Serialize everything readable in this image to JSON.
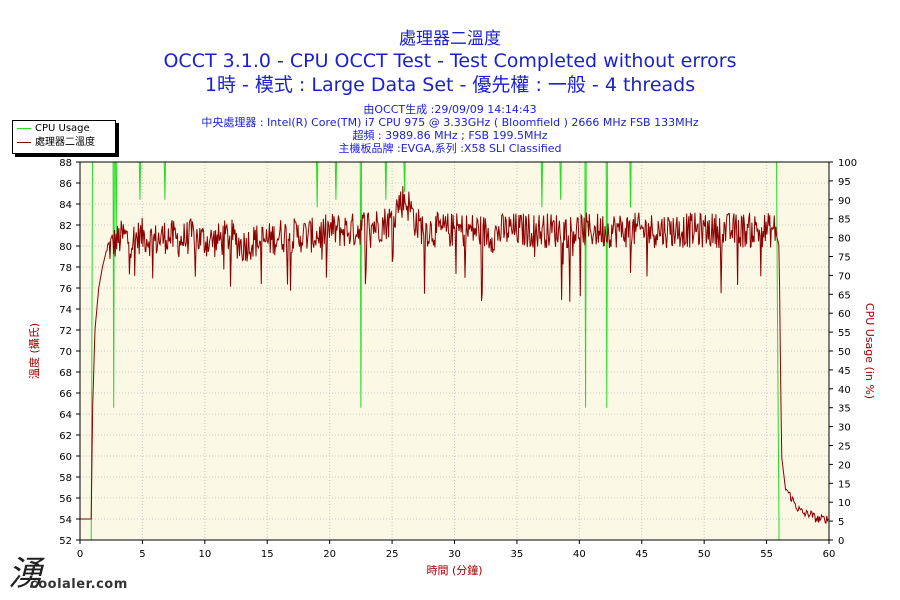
{
  "header": {
    "title1": "處理器二溫度",
    "title2": "OCCT 3.1.0 - CPU OCCT Test - Test Completed without errors",
    "title3": "1時 - 模式 : Large Data Set - 優先權 : 一般 - 4 threads",
    "info_generated": "由OCCT生成 :29/09/09 14:14:43",
    "info_cpu": "中央處理器 : Intel(R) Core(TM) i7 CPU 975 @ 3.33GHz ( Bloomfield ) 2666 MHz FSB 133MHz",
    "info_freq": "超頻 : 3989.86 MHz ; FSB 199.5MHz",
    "info_board": "主機板品牌 :EVGA,系列 :X58 SLI Classified"
  },
  "legend": {
    "cpu_usage": "CPU Usage",
    "temp": "處理器二溫度"
  },
  "watermark": {
    "text": "coolaler.com"
  },
  "colors": {
    "temp_line": "#8b0000",
    "usage_line": "#22dd22",
    "plot_bg": "#fbf8e6",
    "grid": "#c8c8c8",
    "title": "#1a1fd0",
    "axis_label": "#a00000"
  },
  "chart_data": {
    "type": "line",
    "xlabel": "時間 (分鐘)",
    "ylabel_left": "溫度 (攝氏)",
    "ylabel_right": "CPU Usage (in %)",
    "xlim": [
      0,
      60
    ],
    "ylim_left": [
      52,
      88
    ],
    "ylim_right": [
      0,
      100
    ],
    "x_ticks": [
      0,
      5,
      10,
      15,
      20,
      25,
      30,
      35,
      40,
      45,
      50,
      55,
      60
    ],
    "y_ticks_left": [
      52,
      54,
      56,
      58,
      60,
      62,
      64,
      66,
      68,
      70,
      72,
      74,
      76,
      78,
      80,
      82,
      84,
      86,
      88
    ],
    "y_ticks_right": [
      0,
      5,
      10,
      15,
      20,
      25,
      30,
      35,
      40,
      45,
      50,
      55,
      60,
      65,
      70,
      75,
      80,
      85,
      90,
      95,
      100
    ],
    "grid": true,
    "legend_position": "top-left",
    "series": [
      {
        "name": "處理器二溫度",
        "axis": "left",
        "x": [
          0,
          0.9,
          1.0,
          1.2,
          1.5,
          1.8,
          2.1,
          2.5,
          3.0,
          3.5,
          4.0,
          5,
          6,
          7,
          8,
          9,
          10,
          11,
          12,
          13,
          14,
          15,
          16,
          17,
          18,
          19,
          20,
          21,
          22,
          23,
          24,
          25,
          25.5,
          26,
          26.5,
          27,
          28,
          29,
          30,
          31,
          32,
          33,
          34,
          35,
          36,
          37,
          38,
          39,
          40,
          41,
          42,
          43,
          44,
          45,
          46,
          47,
          48,
          49,
          50,
          51,
          52,
          53,
          54,
          55,
          55.7,
          56.0,
          56.2,
          56.5,
          57,
          57.5,
          58,
          58.5,
          59,
          59.5,
          60
        ],
        "y": [
          54,
          54,
          64,
          72,
          76,
          78,
          79.5,
          80,
          80.5,
          81,
          80.5,
          81,
          80.5,
          81,
          80.5,
          81,
          80.5,
          80.5,
          81,
          80,
          80.5,
          80.5,
          81,
          81,
          81,
          81,
          81.5,
          81.5,
          81.5,
          82,
          82,
          82.5,
          84,
          84.5,
          83.5,
          82,
          81.5,
          81.5,
          81.5,
          81.5,
          81.5,
          81,
          81.5,
          81.5,
          81.5,
          81.5,
          81.5,
          81.5,
          81.5,
          81.5,
          81.5,
          81.5,
          81.5,
          81.5,
          81.5,
          81.5,
          81.5,
          81.5,
          81.5,
          81.5,
          81.5,
          81.5,
          81.5,
          81.5,
          81.5,
          80,
          60,
          57,
          56,
          55,
          54.5,
          54.5,
          54,
          54,
          54
        ]
      },
      {
        "name": "CPU Usage",
        "axis": "right",
        "x": [
          0,
          0.9,
          1.0,
          3,
          5,
          10,
          15,
          20,
          25,
          30,
          35,
          40,
          45,
          50,
          55,
          55.8,
          56.0,
          56.2,
          60
        ],
        "y": [
          0,
          0,
          100,
          100,
          100,
          100,
          100,
          100,
          100,
          100,
          100,
          100,
          100,
          100,
          100,
          100,
          0,
          0,
          0
        ],
        "dips": [
          {
            "x": 2.7,
            "y": 35
          },
          {
            "x": 2.9,
            "y": 80
          },
          {
            "x": 4.8,
            "y": 90
          },
          {
            "x": 6.8,
            "y": 90
          },
          {
            "x": 19.0,
            "y": 88
          },
          {
            "x": 20.5,
            "y": 90
          },
          {
            "x": 22.5,
            "y": 35
          },
          {
            "x": 24.5,
            "y": 90
          },
          {
            "x": 26.0,
            "y": 92
          },
          {
            "x": 37.0,
            "y": 88
          },
          {
            "x": 38.5,
            "y": 90
          },
          {
            "x": 40.5,
            "y": 35
          },
          {
            "x": 42.2,
            "y": 35
          },
          {
            "x": 44.1,
            "y": 88
          }
        ]
      }
    ]
  }
}
